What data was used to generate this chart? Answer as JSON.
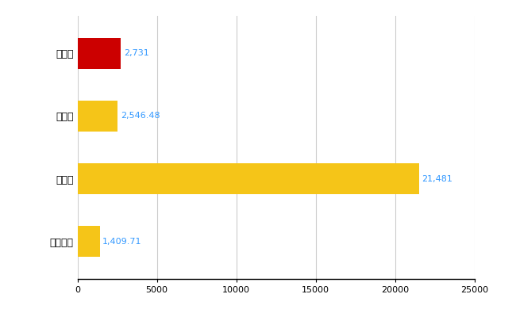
{
  "categories": [
    "佐伯区",
    "県平均",
    "県最大",
    "全国平均"
  ],
  "values": [
    2731,
    2546.48,
    21481,
    1409.71
  ],
  "labels": [
    "2,731",
    "2,546.48",
    "21,481",
    "1,409.71"
  ],
  "bar_colors": [
    "#cc0000",
    "#f5c518",
    "#f5c518",
    "#f5c518"
  ],
  "xlim": [
    0,
    25000
  ],
  "xticks": [
    0,
    5000,
    10000,
    15000,
    20000,
    25000
  ],
  "background_color": "#ffffff",
  "grid_color": "#cccccc",
  "label_color": "#3399ff",
  "label_fontsize": 8,
  "tick_fontsize": 8,
  "ylabel_fontsize": 9
}
